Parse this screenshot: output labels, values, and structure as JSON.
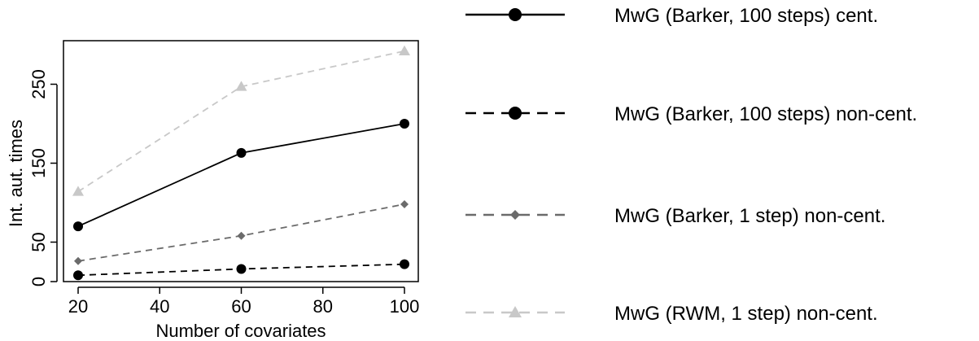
{
  "chart_data": {
    "type": "line",
    "xlabel": "Number of covariates",
    "ylabel": "Int. aut. times",
    "xlim": [
      20,
      100
    ],
    "ylim": [
      0,
      290
    ],
    "x_ticks": [
      "20",
      "40",
      "60",
      "80",
      "100"
    ],
    "y_ticks": [
      "0",
      "50",
      "150",
      "250"
    ],
    "x": [
      20,
      60,
      100
    ],
    "legend_position": "right",
    "grid": false,
    "series": [
      {
        "name": "MwG (Barker, 100 steps) cent.",
        "values": [
          70,
          163,
          200
        ],
        "color": "#000000",
        "dash": "solid",
        "marker": "circle-large"
      },
      {
        "name": "MwG (Barker, 100 steps) non-cent.",
        "values": [
          8,
          16,
          22
        ],
        "color": "#000000",
        "dash": "dashed",
        "marker": "circle-large"
      },
      {
        "name": "MwG (Barker, 1 step) non-cent.",
        "values": [
          26,
          58,
          98
        ],
        "color": "#6b6b6b",
        "dash": "dashed",
        "marker": "diamond"
      },
      {
        "name": "MwG (RWM, 1 step) non-cent.",
        "values": [
          114,
          247,
          292
        ],
        "color": "#c8c8c8",
        "dash": "dashed",
        "marker": "triangle"
      }
    ]
  }
}
